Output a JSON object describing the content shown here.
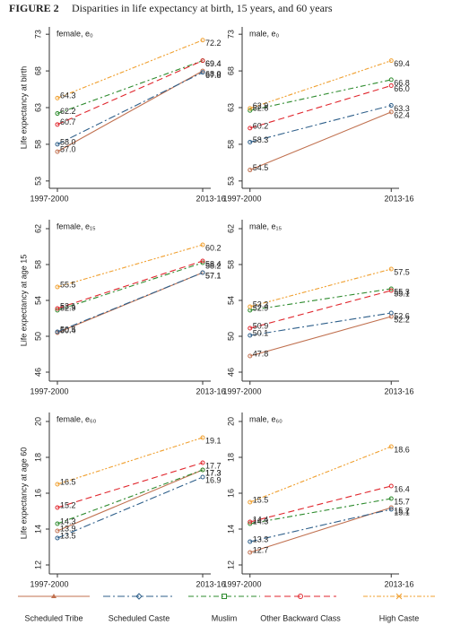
{
  "figure_label": "FIGURE 2",
  "figure_title": "Disparities in life expectancy at birth, 15 years, and 60 years",
  "legend": [
    {
      "name": "Scheduled Tribe",
      "color": "#c0704f",
      "dash": "",
      "marker": "triangle"
    },
    {
      "name": "Scheduled Caste",
      "color": "#2e5f8a",
      "dash": "8 3 2 3",
      "marker": "diamond"
    },
    {
      "name": "Muslim",
      "color": "#2e8b2e",
      "dash": "6 3 2 3",
      "marker": "square"
    },
    {
      "name": "Other Backward Class",
      "color": "#e0262d",
      "dash": "7 4",
      "marker": "circle"
    },
    {
      "name": "High Caste",
      "color": "#f0a030",
      "dash": "5 2 2 2 2 2",
      "marker": "x"
    }
  ],
  "chart_data": [
    {
      "type": "line",
      "title": "female, e₀",
      "ylabel": "Life expectancy at birth",
      "categories": [
        "1997-2000",
        "2013-16"
      ],
      "ylim": [
        52,
        74
      ],
      "yticks": [
        53,
        58,
        63,
        68,
        73
      ],
      "series": [
        {
          "values": [
            57.0,
            68.0
          ],
          "value_labels": [
            "57.0",
            "68.0"
          ]
        },
        {
          "values": [
            58.0,
            67.8
          ],
          "value_labels": [
            "58.0",
            "67.8"
          ]
        },
        {
          "values": [
            62.2,
            69.4
          ],
          "value_labels": [
            "62.2",
            "69.4"
          ]
        },
        {
          "values": [
            60.7,
            69.4
          ],
          "value_labels": [
            "60.7",
            "69.4"
          ]
        },
        {
          "values": [
            64.3,
            72.2
          ],
          "value_labels": [
            "64.3",
            "72.2"
          ]
        }
      ]
    },
    {
      "type": "line",
      "title": "male, e₀",
      "categories": [
        "1997-2000",
        "2013-16"
      ],
      "ylim": [
        52,
        74
      ],
      "yticks": [
        53,
        58,
        63,
        68,
        73
      ],
      "series": [
        {
          "values": [
            54.5,
            62.4
          ],
          "value_labels": [
            "54.5",
            "62.4"
          ]
        },
        {
          "values": [
            58.3,
            63.3
          ],
          "value_labels": [
            "58.3",
            "63.3"
          ]
        },
        {
          "values": [
            62.6,
            66.8
          ],
          "value_labels": [
            "62.6",
            "66.8"
          ]
        },
        {
          "values": [
            60.2,
            66.0
          ],
          "value_labels": [
            "60.2",
            "66.0"
          ]
        },
        {
          "values": [
            62.9,
            69.4
          ],
          "value_labels": [
            "62.9",
            "69.4"
          ]
        }
      ]
    },
    {
      "type": "line",
      "title": "female, e₁₅",
      "ylabel": "Life expectancy at age 15",
      "categories": [
        "1997-2000",
        "2013-16"
      ],
      "ylim": [
        45,
        63
      ],
      "yticks": [
        46,
        50,
        54,
        58,
        62
      ],
      "series": [
        {
          "values": [
            50.4,
            57.1
          ],
          "value_labels": [
            "50.4",
            "57.1"
          ]
        },
        {
          "values": [
            50.5,
            57.1
          ],
          "value_labels": [
            "50.5",
            "57.1"
          ]
        },
        {
          "values": [
            52.9,
            58.2
          ],
          "value_labels": [
            "52.9",
            "58.2"
          ]
        },
        {
          "values": [
            53.1,
            58.4
          ],
          "value_labels": [
            "53.1",
            "58.4"
          ]
        },
        {
          "values": [
            55.5,
            60.2
          ],
          "value_labels": [
            "55.5",
            "60.2"
          ]
        }
      ]
    },
    {
      "type": "line",
      "title": "male, e₁₅",
      "categories": [
        "1997-2000",
        "2013-16"
      ],
      "ylim": [
        45,
        63
      ],
      "yticks": [
        46,
        50,
        54,
        58,
        62
      ],
      "series": [
        {
          "values": [
            47.8,
            52.2
          ],
          "value_labels": [
            "47.8",
            "52.2"
          ]
        },
        {
          "values": [
            50.1,
            52.6
          ],
          "value_labels": [
            "50.1",
            "52.6"
          ]
        },
        {
          "values": [
            52.9,
            55.3
          ],
          "value_labels": [
            "52.9",
            "55.3"
          ]
        },
        {
          "values": [
            50.9,
            55.1
          ],
          "value_labels": [
            "50.9",
            "55.1"
          ]
        },
        {
          "values": [
            53.3,
            57.5
          ],
          "value_labels": [
            "53.3",
            "57.5"
          ]
        }
      ]
    },
    {
      "type": "line",
      "title": "female, e₆₀",
      "ylabel": "Life expectancy at age 60",
      "categories": [
        "1997-2000",
        "2013-16"
      ],
      "ylim": [
        11.5,
        20.5
      ],
      "yticks": [
        12,
        14,
        16,
        18,
        20
      ],
      "series": [
        {
          "values": [
            13.9,
            17.3
          ],
          "value_labels": [
            "13.9",
            "17.3"
          ]
        },
        {
          "values": [
            13.5,
            16.9
          ],
          "value_labels": [
            "13.5",
            "16.9"
          ]
        },
        {
          "values": [
            14.3,
            17.3
          ],
          "value_labels": [
            "14.3",
            "17.3"
          ]
        },
        {
          "values": [
            15.2,
            17.7
          ],
          "value_labels": [
            "15.2",
            "17.7"
          ]
        },
        {
          "values": [
            16.5,
            19.1
          ],
          "value_labels": [
            "16.5",
            "19.1"
          ]
        }
      ]
    },
    {
      "type": "line",
      "title": "male, e₆₀",
      "categories": [
        "1997-2000",
        "2013-16"
      ],
      "ylim": [
        11.5,
        20.5
      ],
      "yticks": [
        12,
        14,
        16,
        18,
        20
      ],
      "series": [
        {
          "values": [
            12.7,
            15.2
          ],
          "value_labels": [
            "12.7",
            "15.2"
          ]
        },
        {
          "values": [
            13.3,
            15.1
          ],
          "value_labels": [
            "13.3",
            "15.1"
          ]
        },
        {
          "values": [
            14.3,
            15.7
          ],
          "value_labels": [
            "14.3",
            "15.7"
          ]
        },
        {
          "values": [
            14.4,
            16.4
          ],
          "value_labels": [
            "14.4",
            "16.4"
          ]
        },
        {
          "values": [
            15.5,
            18.6
          ],
          "value_labels": [
            "15.5",
            "18.6"
          ]
        }
      ]
    }
  ]
}
